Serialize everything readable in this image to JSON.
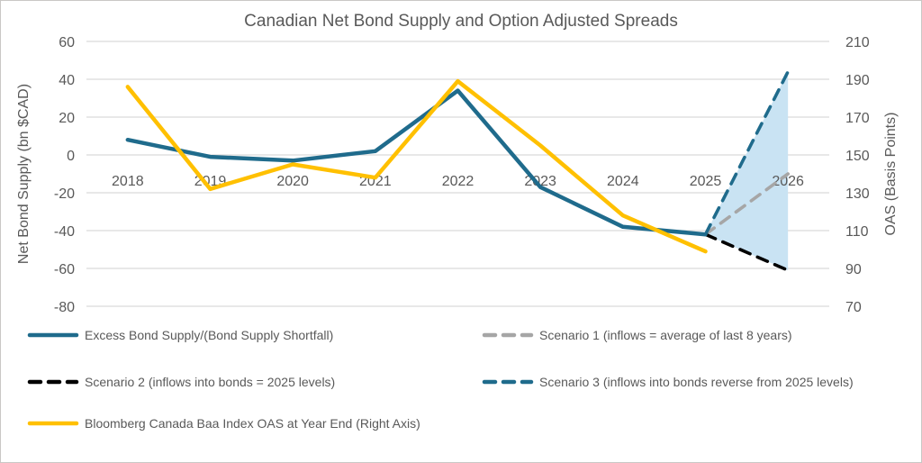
{
  "chart_data": {
    "type": "line",
    "title": "Canadian Net Bond Supply and Option Adjusted Spreads",
    "categories": [
      "2018",
      "2019",
      "2020",
      "2021",
      "2022",
      "2023",
      "2024",
      "2025",
      "2026"
    ],
    "left_axis": {
      "label": "Net Bond Supply (bn $CAD)",
      "ticks": [
        60,
        40,
        20,
        0,
        -20,
        -40,
        -60,
        -80
      ],
      "range": [
        -80,
        60
      ]
    },
    "right_axis": {
      "label": "OAS (Basis Points)",
      "ticks": [
        210,
        190,
        170,
        150,
        130,
        110,
        90,
        70
      ],
      "range": [
        70,
        210
      ]
    },
    "grid": "horizontal-only",
    "legend_position": "bottom-two-columns",
    "series": [
      {
        "name": "Excess Bond Supply/(Bond Supply Shortfall)",
        "axis": "left",
        "style": "solid",
        "color": "#1F6B8C",
        "values": [
          8,
          -1,
          -3,
          2,
          34,
          -17,
          -38,
          -42,
          null
        ]
      },
      {
        "name": "Scenario 1 (inflows = average of last 8 years)",
        "axis": "left",
        "style": "dashed",
        "color": "#A6A6A6",
        "values": [
          null,
          null,
          null,
          null,
          null,
          null,
          null,
          -42,
          -10
        ]
      },
      {
        "name": "Scenario 2 (inflows into bonds = 2025 levels)",
        "axis": "left",
        "style": "dashed",
        "color": "#000000",
        "values": [
          null,
          null,
          null,
          null,
          null,
          null,
          null,
          -42,
          -61
        ]
      },
      {
        "name": "Scenario 3 (inflows into bonds reverse from 2025 levels)",
        "axis": "left",
        "style": "dashed",
        "color": "#1F6B8C",
        "values": [
          null,
          null,
          null,
          null,
          null,
          null,
          null,
          -42,
          44
        ]
      },
      {
        "name": "Bloomberg Canada Baa Index OAS at Year End (Right Axis)",
        "axis": "right",
        "style": "solid",
        "color": "#FFC000",
        "values": [
          186,
          132,
          145,
          138,
          189,
          155,
          118,
          99,
          null
        ]
      }
    ],
    "shaded_region": {
      "description": "projection fan between Scenario 3 and Scenario 2 from 2025 to 2026",
      "color": "#C9E3F3",
      "points": [
        [
          2025,
          -42
        ],
        [
          2026,
          44
        ],
        [
          2026,
          -61
        ]
      ]
    },
    "colors": {
      "gridline": "#D9D9D9",
      "text": "#595959",
      "background": "#FFFFFF"
    }
  }
}
